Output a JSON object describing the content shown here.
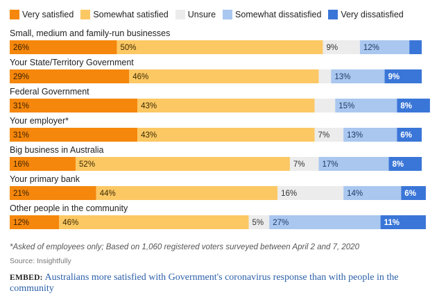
{
  "legend": [
    {
      "label": "Very satisfied",
      "color": "#f5870c"
    },
    {
      "label": "Somewhat satisfied",
      "color": "#fcc864"
    },
    {
      "label": "Unsure",
      "color": "#ececec"
    },
    {
      "label": "Somewhat dissatisfied",
      "color": "#a9c7ef"
    },
    {
      "label": "Very dissatisfied",
      "color": "#3a76d8"
    }
  ],
  "chart_data": {
    "type": "bar",
    "orientation": "horizontal",
    "stacked": true,
    "xlim": [
      0,
      100
    ],
    "grid": false,
    "legend_position": "top",
    "categories": [
      "Small, medium and family-run businesses",
      "Your State/Territory Government",
      "Federal Government",
      "Your employer*",
      "Big business in Australia",
      "Your primary bank",
      "Other people in the community"
    ],
    "series": [
      {
        "name": "Very satisfied",
        "values": [
          26,
          29,
          31,
          31,
          16,
          21,
          12
        ],
        "labels": [
          "26%",
          "29%",
          "31%",
          "31%",
          "16%",
          "21%",
          "12%"
        ]
      },
      {
        "name": "Somewhat satisfied",
        "values": [
          50,
          46,
          43,
          43,
          52,
          44,
          46
        ],
        "labels": [
          "50%",
          "46%",
          "43%",
          "43%",
          "52%",
          "44%",
          "46%"
        ]
      },
      {
        "name": "Unsure",
        "values": [
          9,
          3,
          5,
          7,
          7,
          16,
          5
        ],
        "labels": [
          "9%",
          "",
          "",
          "7%",
          "7%",
          "16%",
          "5%"
        ]
      },
      {
        "name": "Somewhat dissatisfied",
        "values": [
          12,
          13,
          15,
          13,
          17,
          14,
          27
        ],
        "labels": [
          "12%",
          "13%",
          "15%",
          "13%",
          "17%",
          "14%",
          "27%"
        ]
      },
      {
        "name": "Very dissatisfied",
        "values": [
          3,
          9,
          8,
          6,
          8,
          6,
          11
        ],
        "labels": [
          "",
          "9%",
          "8%",
          "6%",
          "8%",
          "6%",
          "11%"
        ]
      }
    ]
  },
  "footnote": "*Asked of employees only; Based on 1,060 registered voters surveyed between April 2 and 7, 2020",
  "source": "Source: Insightfully",
  "embed": {
    "prefix": "EMBED:",
    "link_text": "Australians more satisfied with Government's coronavirus response than with people in the community"
  }
}
